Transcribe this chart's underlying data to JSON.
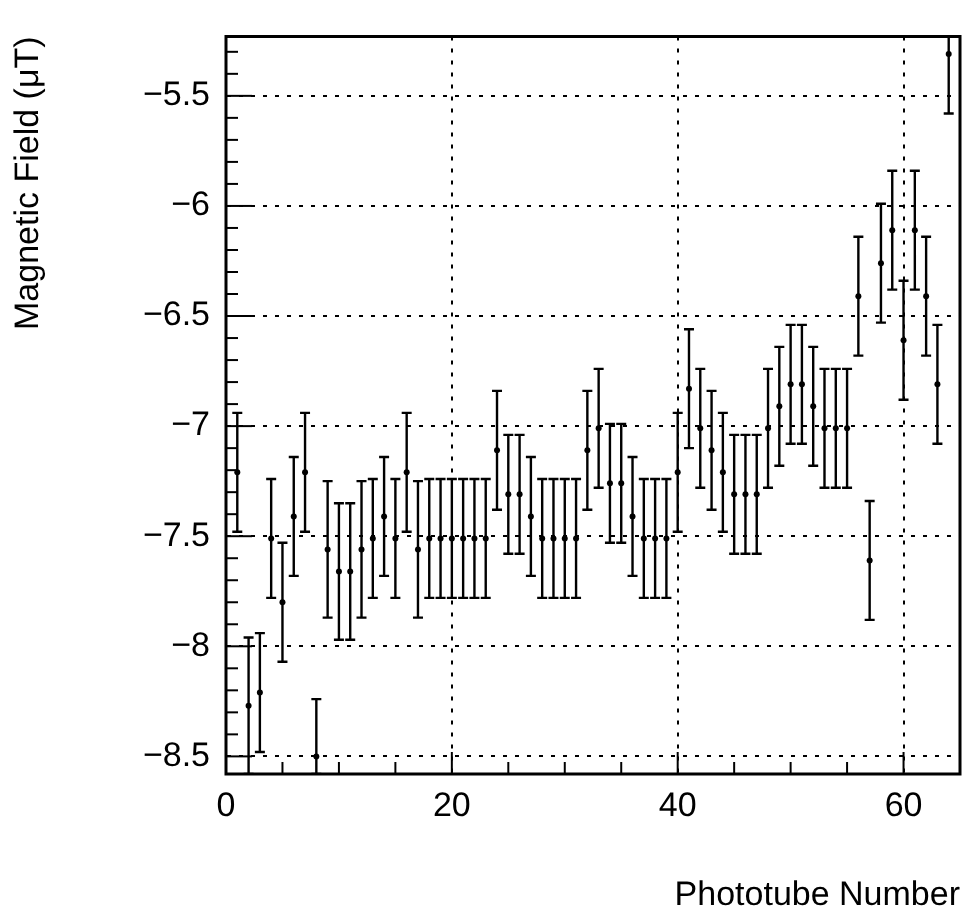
{
  "chart_data": {
    "type": "scatter",
    "xlabel": "Phototube Number",
    "ylabel": "Magnetic Field (μT)",
    "x": [
      1,
      2,
      3,
      4,
      5,
      6,
      7,
      8,
      9,
      10,
      11,
      12,
      13,
      14,
      15,
      16,
      17,
      18,
      19,
      20,
      21,
      22,
      23,
      24,
      25,
      26,
      27,
      28,
      29,
      30,
      31,
      32,
      33,
      34,
      35,
      36,
      37,
      38,
      39,
      40,
      41,
      42,
      43,
      44,
      45,
      46,
      47,
      48,
      49,
      50,
      51,
      52,
      53,
      54,
      55,
      56,
      57,
      58,
      59,
      60,
      61,
      62,
      63,
      64
    ],
    "series": [
      {
        "color": "#000000",
        "values": [
          -7.21,
          -8.27,
          -8.21,
          -7.51,
          -7.8,
          -7.41,
          -7.21,
          -8.5,
          -7.56,
          -7.66,
          -7.66,
          -7.56,
          -7.51,
          -7.41,
          -7.51,
          -7.21,
          -7.56,
          -7.51,
          -7.51,
          -7.51,
          -7.51,
          -7.51,
          -7.51,
          -7.11,
          -7.31,
          -7.31,
          -7.41,
          -7.51,
          -7.51,
          -7.51,
          -7.51,
          -7.11,
          -7.01,
          -7.26,
          -7.26,
          -7.41,
          -7.51,
          -7.51,
          -7.51,
          -7.21,
          -6.83,
          -7.01,
          -7.11,
          -7.21,
          -7.31,
          -7.31,
          -7.31,
          -7.01,
          -6.91,
          -6.81,
          -6.81,
          -6.91,
          -7.01,
          -7.01,
          -7.01,
          -6.41,
          -7.61,
          -6.26,
          -6.11,
          -6.61,
          -6.11,
          -6.41,
          -6.81,
          -5.31
        ],
        "errors": [
          0.27,
          0.31,
          0.27,
          0.27,
          0.27,
          0.27,
          0.27,
          [
            -8.58,
            -8.24
          ],
          0.31,
          0.31,
          0.31,
          0.31,
          0.27,
          0.27,
          0.27,
          0.27,
          0.31,
          0.27,
          0.27,
          0.27,
          0.27,
          0.27,
          0.27,
          0.27,
          0.27,
          0.27,
          0.27,
          0.27,
          0.27,
          0.27,
          0.27,
          0.27,
          0.27,
          0.27,
          0.27,
          0.27,
          0.27,
          0.27,
          0.27,
          0.27,
          0.27,
          0.27,
          0.27,
          0.27,
          0.27,
          0.27,
          0.27,
          0.27,
          0.27,
          0.27,
          0.27,
          0.27,
          0.27,
          0.27,
          0.27,
          0.27,
          0.27,
          0.27,
          0.27,
          0.27,
          0.27,
          0.27,
          0.27,
          [
            -5.58,
            -5.23
          ]
        ]
      }
    ],
    "xlim": [
      0,
      65
    ],
    "ylim": [
      -8.58,
      -5.23
    ],
    "xticks": [
      0,
      {
        "value": 5,
        "label": null
      },
      {
        "value": 10,
        "label": null
      },
      {
        "value": 15,
        "label": null
      },
      20,
      {
        "value": 25,
        "label": null
      },
      {
        "value": 30,
        "label": null
      },
      {
        "value": 35,
        "label": null
      },
      40,
      {
        "value": 45,
        "label": null
      },
      {
        "value": 50,
        "label": null
      },
      {
        "value": 55,
        "label": null
      },
      60
    ],
    "yticks": [
      -8.5,
      {
        "value": -8.4,
        "label": null
      },
      {
        "value": -8.3,
        "label": null
      },
      {
        "value": -8.2,
        "label": null
      },
      {
        "value": -8.1,
        "label": null
      },
      -8,
      {
        "value": -7.9,
        "label": null
      },
      {
        "value": -7.8,
        "label": null
      },
      {
        "value": -7.7,
        "label": null
      },
      {
        "value": -7.6,
        "label": null
      },
      -7.5,
      {
        "value": -7.4,
        "label": null
      },
      {
        "value": -7.3,
        "label": null
      },
      {
        "value": -7.2,
        "label": null
      },
      {
        "value": -7.1,
        "label": null
      },
      -7,
      {
        "value": -6.9,
        "label": null
      },
      {
        "value": -6.8,
        "label": null
      },
      {
        "value": -6.7,
        "label": null
      },
      {
        "value": -6.6,
        "label": null
      },
      -6.5,
      {
        "value": -6.4,
        "label": null
      },
      {
        "value": -6.3,
        "label": null
      },
      {
        "value": -6.2,
        "label": null
      },
      {
        "value": -6.1,
        "label": null
      },
      -6,
      {
        "value": -5.9,
        "label": null
      },
      {
        "value": -5.8,
        "label": null
      },
      {
        "value": -5.7,
        "label": null
      },
      {
        "value": -5.6,
        "label": null
      },
      -5.5,
      {
        "value": -5.4,
        "label": null
      },
      {
        "value": -5.3,
        "label": null
      }
    ],
    "grid": true,
    "legend": false
  }
}
